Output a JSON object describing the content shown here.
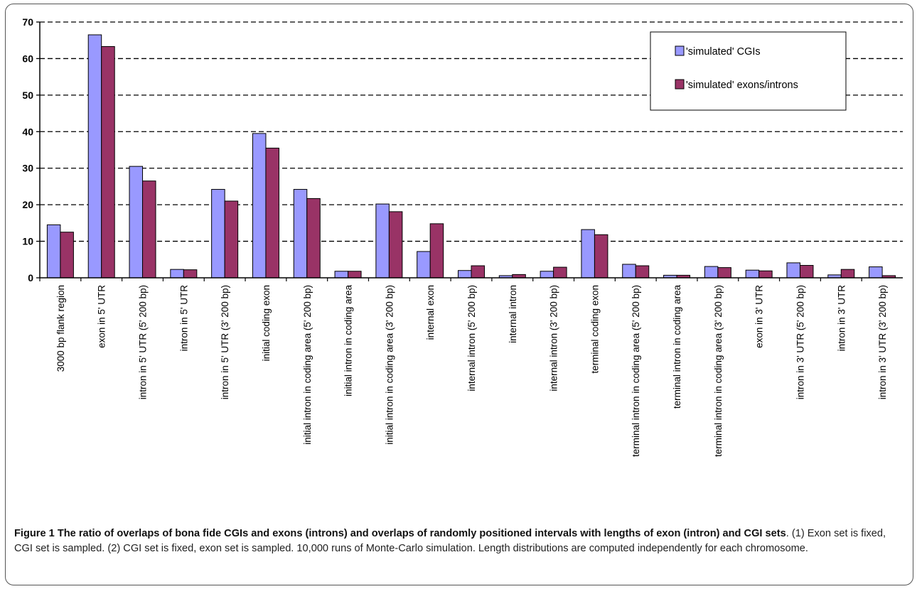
{
  "chart_data": {
    "type": "bar",
    "ylim": [
      0,
      70
    ],
    "yticks": [
      "0",
      "10",
      "20",
      "30",
      "40",
      "50",
      "60",
      "70"
    ],
    "grid": "horizontal dashed",
    "legend_placement": "top-right",
    "categories": [
      "3000 bp flank region",
      "exon in 5' UTR",
      "intron in 5' UTR (5' 200 bp)",
      "intron in 5' UTR",
      "intron in 5' UTR (3' 200 bp)",
      "initial coding exon",
      "initial intron in coding area (5' 200 bp)",
      "initial intron in coding area",
      "initial intron in coding area (3' 200 bp)",
      "internal exon",
      "internal intron (5' 200 bp)",
      "internal intron",
      "internal intron (3' 200 bp)",
      "terminal coding exon",
      "terminal intron in coding area (5' 200 bp)",
      "terminal intron in coding area",
      "terminal intron in coding area (3' 200 bp)",
      "exon in 3' UTR",
      "intron in 3' UTR (5' 200 bp)",
      "intron in 3' UTR",
      "intron in 3' UTR (3' 200 bp)"
    ],
    "series": [
      {
        "name": "'simulated' CGIs",
        "color": "#9999ff",
        "values": [
          14.5,
          66.5,
          30.5,
          2.3,
          24.2,
          39.5,
          24.2,
          1.8,
          20.2,
          7.2,
          2.0,
          0.6,
          1.8,
          13.2,
          3.7,
          0.7,
          3.1,
          2.1,
          4.1,
          0.8,
          3.0
        ]
      },
      {
        "name": "'simulated' exons/introns",
        "color": "#993366",
        "values": [
          12.5,
          63.3,
          26.5,
          2.2,
          21.0,
          35.5,
          21.7,
          1.8,
          18.1,
          14.8,
          3.3,
          0.9,
          2.9,
          11.8,
          3.3,
          0.7,
          2.8,
          1.9,
          3.4,
          2.3,
          0.6
        ]
      }
    ]
  },
  "caption": {
    "title": "Figure 1 The ratio of overlaps of bona fide CGIs and exons (introns) and overlaps of randomly positioned intervals with lengths of exon (intron) and CGI sets",
    "text": ". (1) Exon set is fixed, CGI set is sampled. (2) CGI set is fixed, exon set is sampled. 10,000 runs of Monte-Carlo simulation. Length distributions are computed independently for each chromosome."
  }
}
